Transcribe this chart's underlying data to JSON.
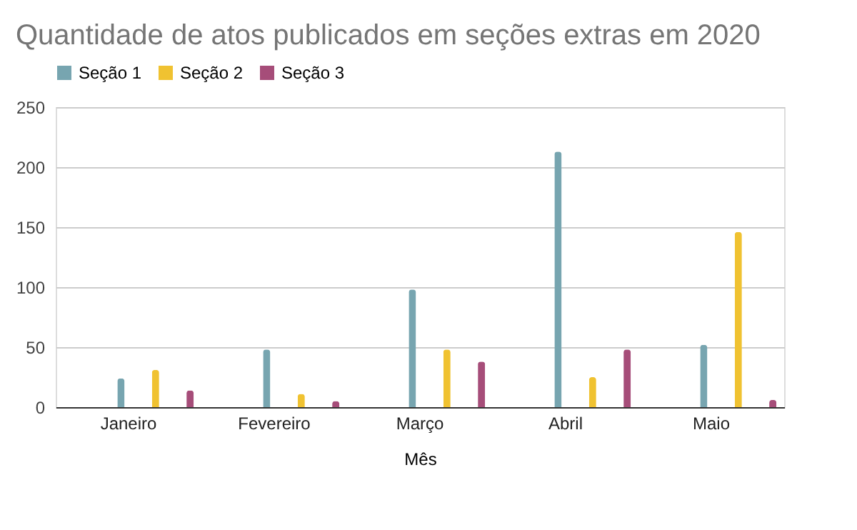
{
  "chart_data": {
    "type": "bar",
    "title": "Quantidade de atos publicados em seções extras em 2020",
    "xlabel": "Mês",
    "categories": [
      "Janeiro",
      "Fevereiro",
      "Março",
      "Abril",
      "Maio"
    ],
    "series": [
      {
        "name": "Seção 1",
        "color": "#77a5b0",
        "values": [
          24,
          48,
          98,
          213,
          52
        ]
      },
      {
        "name": "Seção 2",
        "color": "#f0c231",
        "values": [
          31,
          11,
          48,
          25,
          146
        ]
      },
      {
        "name": "Seção 3",
        "color": "#a64d79",
        "values": [
          14,
          5,
          38,
          48,
          6
        ]
      }
    ],
    "ylim": [
      0,
      250
    ],
    "yticks": [
      0,
      50,
      100,
      150,
      200,
      250
    ],
    "grid": "y",
    "legend": "top"
  }
}
